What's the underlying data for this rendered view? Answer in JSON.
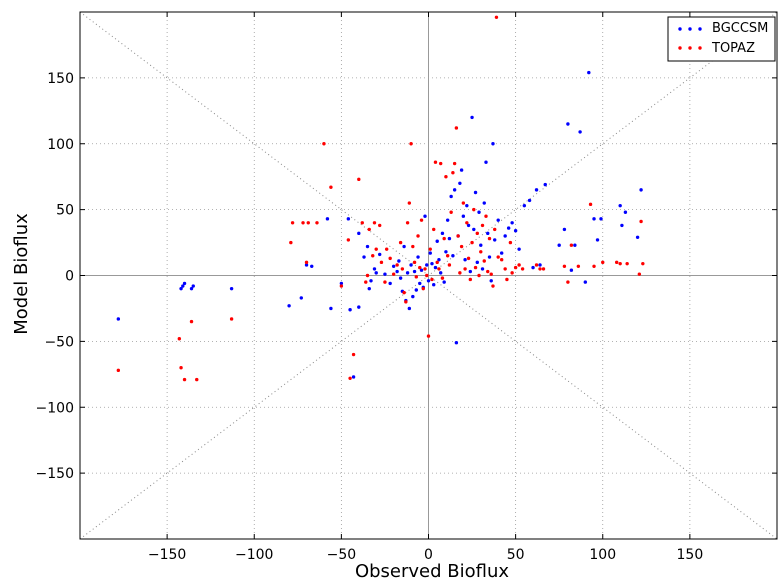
{
  "chart_data": {
    "type": "scatter",
    "title": "",
    "xlabel": "Observed Bioflux",
    "ylabel": "Model Bioflux",
    "xlim": [
      -200,
      200
    ],
    "ylim": [
      -200,
      200
    ],
    "xticks": [
      -150,
      -100,
      -50,
      0,
      50,
      100,
      150
    ],
    "yticks": [
      -150,
      -100,
      -50,
      0,
      50,
      100,
      150
    ],
    "xtick_labels": [
      "−150",
      "−100",
      "−50",
      "0",
      "50",
      "100",
      "150"
    ],
    "ytick_labels": [
      "−150",
      "−100",
      "−50",
      "0",
      "50",
      "100",
      "150"
    ],
    "grid": true,
    "reference_lines": [
      "y = x",
      "y = -x",
      "x = 0",
      "y = 0"
    ],
    "legend_position": "top-right",
    "series": [
      {
        "name": "BGCCSM",
        "color": "#0000ff",
        "points": [
          [
            -178,
            -33
          ],
          [
            -142,
            -10
          ],
          [
            -141,
            -8
          ],
          [
            -140,
            -6
          ],
          [
            -136,
            -10
          ],
          [
            -135,
            -8
          ],
          [
            -113,
            -10
          ],
          [
            -80,
            -23
          ],
          [
            -73,
            -17
          ],
          [
            -70,
            8
          ],
          [
            -67,
            7
          ],
          [
            -58,
            43
          ],
          [
            -56,
            -25
          ],
          [
            -50,
            -6
          ],
          [
            -46,
            43
          ],
          [
            -45,
            -26
          ],
          [
            -43,
            -77
          ],
          [
            -40,
            32
          ],
          [
            -40,
            -24
          ],
          [
            -37,
            14
          ],
          [
            -35,
            22
          ],
          [
            -34,
            -10
          ],
          [
            -33,
            -4
          ],
          [
            -31,
            5
          ],
          [
            -30,
            2
          ],
          [
            -28,
            16
          ],
          [
            -25,
            1
          ],
          [
            -22,
            -6
          ],
          [
            -20,
            7
          ],
          [
            -18,
            3
          ],
          [
            -17,
            11
          ],
          [
            -16,
            -2
          ],
          [
            -15,
            -12
          ],
          [
            -14,
            22
          ],
          [
            -13,
            -19
          ],
          [
            -12,
            2
          ],
          [
            -11,
            -25
          ],
          [
            -10,
            8
          ],
          [
            -9,
            -16
          ],
          [
            -8,
            3
          ],
          [
            -7,
            -11
          ],
          [
            -6,
            14
          ],
          [
            -5,
            -6
          ],
          [
            -4,
            4
          ],
          [
            -3,
            -9
          ],
          [
            -2,
            45
          ],
          [
            -1,
            8
          ],
          [
            0,
            -4
          ],
          [
            1,
            17
          ],
          [
            2,
            9
          ],
          [
            3,
            -7
          ],
          [
            4,
            6
          ],
          [
            5,
            26
          ],
          [
            6,
            12
          ],
          [
            7,
            2
          ],
          [
            8,
            32
          ],
          [
            9,
            -5
          ],
          [
            10,
            18
          ],
          [
            11,
            42
          ],
          [
            12,
            28
          ],
          [
            13,
            60
          ],
          [
            14,
            15
          ],
          [
            15,
            65
          ],
          [
            16,
            -51
          ],
          [
            17,
            30
          ],
          [
            18,
            70
          ],
          [
            19,
            80
          ],
          [
            20,
            45
          ],
          [
            21,
            12
          ],
          [
            22,
            53
          ],
          [
            23,
            38
          ],
          [
            24,
            3
          ],
          [
            25,
            120
          ],
          [
            26,
            35
          ],
          [
            27,
            63
          ],
          [
            28,
            10
          ],
          [
            29,
            48
          ],
          [
            30,
            23
          ],
          [
            31,
            5
          ],
          [
            32,
            55
          ],
          [
            33,
            86
          ],
          [
            34,
            32
          ],
          [
            35,
            14
          ],
          [
            36,
            -4
          ],
          [
            37,
            100
          ],
          [
            38,
            27
          ],
          [
            40,
            42
          ],
          [
            42,
            17
          ],
          [
            44,
            30
          ],
          [
            46,
            36
          ],
          [
            48,
            40
          ],
          [
            50,
            34
          ],
          [
            52,
            20
          ],
          [
            55,
            53
          ],
          [
            58,
            57
          ],
          [
            60,
            6
          ],
          [
            62,
            65
          ],
          [
            64,
            8
          ],
          [
            67,
            69
          ],
          [
            75,
            23
          ],
          [
            78,
            35
          ],
          [
            80,
            115
          ],
          [
            82,
            4
          ],
          [
            84,
            23
          ],
          [
            87,
            109
          ],
          [
            90,
            -5
          ],
          [
            92,
            154
          ],
          [
            95,
            43
          ],
          [
            97,
            27
          ],
          [
            99,
            43
          ],
          [
            110,
            53
          ],
          [
            111,
            38
          ],
          [
            113,
            48
          ],
          [
            120,
            29
          ],
          [
            122,
            65
          ]
        ]
      },
      {
        "name": "TOPAZ",
        "color": "#ff0000",
        "points": [
          [
            -178,
            -72
          ],
          [
            -143,
            -48
          ],
          [
            -142,
            -70
          ],
          [
            -140,
            -79
          ],
          [
            -136,
            -35
          ],
          [
            -133,
            -79
          ],
          [
            -113,
            -33
          ],
          [
            -79,
            25
          ],
          [
            -78,
            40
          ],
          [
            -72,
            40
          ],
          [
            -70,
            10
          ],
          [
            -69,
            40
          ],
          [
            -64,
            40
          ],
          [
            -60,
            100
          ],
          [
            -56,
            67
          ],
          [
            -50,
            -8
          ],
          [
            -46,
            27
          ],
          [
            -45,
            -78
          ],
          [
            -43,
            -60
          ],
          [
            -40,
            73
          ],
          [
            -38,
            40
          ],
          [
            -36,
            -5
          ],
          [
            -35,
            0
          ],
          [
            -34,
            35
          ],
          [
            -32,
            15
          ],
          [
            -31,
            40
          ],
          [
            -30,
            20
          ],
          [
            -28,
            38
          ],
          [
            -27,
            10
          ],
          [
            -25,
            -5
          ],
          [
            -24,
            20
          ],
          [
            -22,
            13
          ],
          [
            -20,
            1
          ],
          [
            -18,
            8
          ],
          [
            -16,
            25
          ],
          [
            -15,
            5
          ],
          [
            -14,
            -13
          ],
          [
            -13,
            -20
          ],
          [
            -12,
            40
          ],
          [
            -11,
            55
          ],
          [
            -10,
            100
          ],
          [
            -9,
            22
          ],
          [
            -8,
            10
          ],
          [
            -7,
            -1
          ],
          [
            -6,
            30
          ],
          [
            -5,
            6
          ],
          [
            -4,
            42
          ],
          [
            -3,
            -10
          ],
          [
            -2,
            5
          ],
          [
            -1,
            0
          ],
          [
            0,
            -46
          ],
          [
            1,
            20
          ],
          [
            2,
            -3
          ],
          [
            3,
            35
          ],
          [
            4,
            86
          ],
          [
            5,
            10
          ],
          [
            6,
            5
          ],
          [
            7,
            85
          ],
          [
            8,
            -2
          ],
          [
            9,
            28
          ],
          [
            10,
            75
          ],
          [
            11,
            15
          ],
          [
            12,
            8
          ],
          [
            13,
            48
          ],
          [
            14,
            78
          ],
          [
            15,
            85
          ],
          [
            16,
            112
          ],
          [
            17,
            30
          ],
          [
            18,
            2
          ],
          [
            19,
            22
          ],
          [
            20,
            55
          ],
          [
            21,
            5
          ],
          [
            22,
            40
          ],
          [
            23,
            13
          ],
          [
            24,
            -3
          ],
          [
            25,
            25
          ],
          [
            26,
            50
          ],
          [
            27,
            6
          ],
          [
            28,
            32
          ],
          [
            29,
            0
          ],
          [
            30,
            18
          ],
          [
            31,
            38
          ],
          [
            32,
            11
          ],
          [
            33,
            45
          ],
          [
            34,
            3
          ],
          [
            35,
            28
          ],
          [
            36,
            1
          ],
          [
            37,
            -8
          ],
          [
            38,
            35
          ],
          [
            39,
            196
          ],
          [
            40,
            14
          ],
          [
            42,
            12
          ],
          [
            44,
            5
          ],
          [
            45,
            -3
          ],
          [
            47,
            25
          ],
          [
            48,
            2
          ],
          [
            50,
            6
          ],
          [
            52,
            8
          ],
          [
            54,
            5
          ],
          [
            62,
            8
          ],
          [
            64,
            5
          ],
          [
            66,
            5
          ],
          [
            78,
            7
          ],
          [
            80,
            -5
          ],
          [
            82,
            23
          ],
          [
            86,
            7
          ],
          [
            93,
            54
          ],
          [
            95,
            7
          ],
          [
            100,
            10
          ],
          [
            108,
            10
          ],
          [
            110,
            9
          ],
          [
            114,
            9
          ],
          [
            121,
            1
          ],
          [
            122,
            41
          ],
          [
            123,
            9
          ]
        ]
      }
    ]
  }
}
